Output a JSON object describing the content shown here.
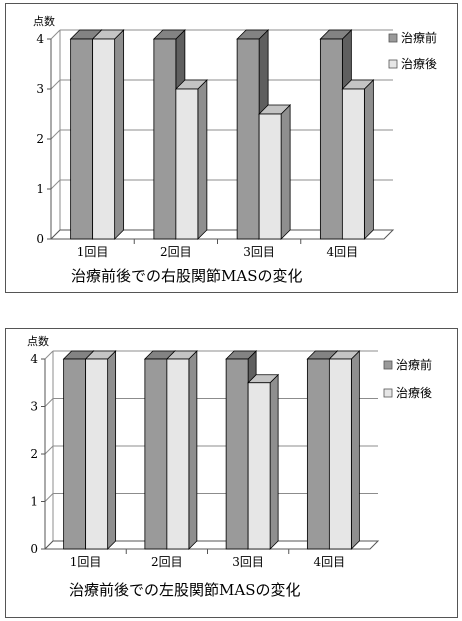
{
  "chart_data": [
    {
      "type": "bar",
      "title": "治療前後での右股関節MASの変化",
      "ylabel": "点数",
      "categories": [
        "1回目",
        "2回目",
        "3回目",
        "4回目"
      ],
      "series": [
        {
          "name": "治療前",
          "values": [
            4,
            4,
            4,
            4
          ],
          "color": "#9a9a9a"
        },
        {
          "name": "治療後",
          "values": [
            4,
            3,
            2.5,
            3
          ],
          "color": "#e6e6e6"
        }
      ],
      "yticks": [
        "0",
        "1",
        "2",
        "3",
        "4"
      ],
      "ylim": [
        0,
        4
      ],
      "grid": true,
      "legend": "right"
    },
    {
      "type": "bar",
      "title": "治療前後での左股関節MASの変化",
      "ylabel": "点数",
      "categories": [
        "1回目",
        "2回目",
        "3回目",
        "4回目"
      ],
      "series": [
        {
          "name": "治療前",
          "values": [
            4,
            4,
            4,
            4
          ],
          "color": "#9a9a9a"
        },
        {
          "name": "治療後",
          "values": [
            4,
            4,
            3.5,
            4
          ],
          "color": "#e6e6e6"
        }
      ],
      "yticks": [
        "0",
        "1",
        "2",
        "3",
        "4"
      ],
      "ylim": [
        0,
        4
      ],
      "grid": true,
      "legend": "right"
    }
  ]
}
